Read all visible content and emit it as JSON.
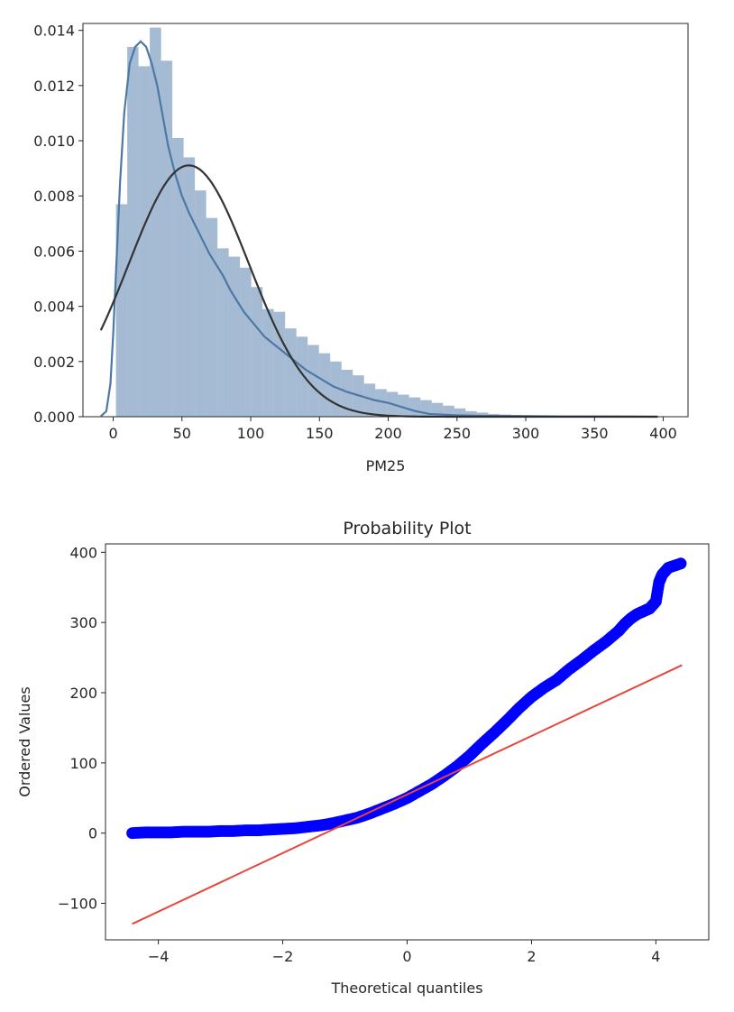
{
  "chart_data": [
    {
      "type": "bar",
      "subtype": "histogram-with-kde-and-normal-fit",
      "title": "",
      "xlabel": "PM25",
      "ylabel": "",
      "xlim": [
        -22,
        418
      ],
      "ylim": [
        0,
        0.01425
      ],
      "xticks": [
        0,
        50,
        100,
        150,
        200,
        250,
        300,
        350,
        400
      ],
      "yticks": [
        0.0,
        0.002,
        0.004,
        0.006,
        0.008,
        0.01,
        0.012,
        0.014
      ],
      "ytick_labels": [
        "0.000",
        "0.002",
        "0.004",
        "0.006",
        "0.008",
        "0.010",
        "0.012",
        "0.014"
      ],
      "grid": false,
      "legend": "none",
      "colors": {
        "bars": "#4c78a8",
        "kde": "#4c78a8",
        "normal_fit": "#333333"
      },
      "bins": {
        "start": 2,
        "width": 8.2,
        "density": [
          0.0077,
          0.0134,
          0.0127,
          0.0141,
          0.0129,
          0.0101,
          0.0094,
          0.0082,
          0.0072,
          0.0061,
          0.0058,
          0.0054,
          0.0047,
          0.0039,
          0.0038,
          0.0032,
          0.0029,
          0.0026,
          0.0023,
          0.002,
          0.0017,
          0.0015,
          0.0012,
          0.001,
          0.0009,
          0.0008,
          0.0007,
          0.0006,
          0.0005,
          0.0004,
          0.0003,
          0.0002,
          0.00015,
          0.0001,
          8e-05,
          6e-05,
          5e-05,
          4e-05,
          3e-05,
          2e-05,
          2e-05,
          1e-05,
          1e-05,
          1e-05,
          1e-05,
          1e-05
        ]
      },
      "series": [
        {
          "kind": "kde",
          "x": [
            -9,
            -5,
            -2,
            0,
            2,
            5,
            8,
            12,
            16,
            20,
            24,
            28,
            32,
            36,
            40,
            45,
            50,
            55,
            60,
            65,
            70,
            75,
            80,
            85,
            90,
            95,
            100,
            110,
            120,
            130,
            140,
            150,
            160,
            170,
            180,
            190,
            200,
            210,
            220,
            230,
            250,
            270,
            300,
            330,
            360,
            396
          ],
          "y": [
            2e-05,
            0.0002,
            0.0012,
            0.003,
            0.0052,
            0.0085,
            0.011,
            0.0128,
            0.0134,
            0.0136,
            0.0134,
            0.0128,
            0.012,
            0.0109,
            0.0098,
            0.0088,
            0.008,
            0.0074,
            0.0069,
            0.0064,
            0.0059,
            0.0055,
            0.0051,
            0.0046,
            0.0042,
            0.0038,
            0.0035,
            0.0029,
            0.0025,
            0.0021,
            0.0017,
            0.0014,
            0.0011,
            0.0009,
            0.00075,
            0.0006,
            0.0005,
            0.00035,
            0.0002,
            0.0001,
            5e-05,
            3e-05,
            2e-05,
            1e-05,
            1e-05,
            0.0
          ]
        },
        {
          "kind": "normal-fit",
          "mean": 55,
          "std": 43.8,
          "x_range": [
            -9,
            396
          ]
        }
      ]
    },
    {
      "type": "scatter",
      "subtype": "probability-plot",
      "title": "Probability Plot",
      "xlabel": "Theoretical quantiles",
      "ylabel": "Ordered Values",
      "xlim": [
        -4.85,
        4.85
      ],
      "ylim": [
        -152,
        412
      ],
      "xticks": [
        -4,
        -2,
        0,
        2,
        4
      ],
      "xtick_labels": [
        "−4",
        "−2",
        "0",
        "2",
        "4"
      ],
      "yticks": [
        -100,
        0,
        100,
        200,
        300,
        400
      ],
      "ytick_labels": [
        "−100",
        "0",
        "100",
        "200",
        "300",
        "400"
      ],
      "grid": false,
      "legend": "none",
      "colors": {
        "points": "#0000ff",
        "fit_line": "#e8453c"
      },
      "series": [
        {
          "kind": "ordered-values",
          "x": [
            -4.42,
            -4.2,
            -4.0,
            -3.8,
            -3.6,
            -3.4,
            -3.2,
            -3.0,
            -2.8,
            -2.6,
            -2.4,
            -2.2,
            -2.0,
            -1.8,
            -1.6,
            -1.4,
            -1.2,
            -1.0,
            -0.8,
            -0.6,
            -0.4,
            -0.2,
            0.0,
            0.2,
            0.4,
            0.6,
            0.8,
            1.0,
            1.2,
            1.4,
            1.6,
            1.8,
            2.0,
            2.2,
            2.4,
            2.6,
            2.8,
            3.0,
            3.2,
            3.4,
            3.5,
            3.6,
            3.7,
            3.8,
            3.85,
            3.9,
            4.0,
            4.05,
            4.1,
            4.2,
            4.4
          ],
          "y": [
            0,
            1,
            1,
            1,
            2,
            2,
            2,
            3,
            3,
            4,
            4,
            5,
            6,
            7,
            9,
            11,
            14,
            18,
            22,
            28,
            35,
            42,
            50,
            60,
            70,
            82,
            95,
            110,
            127,
            143,
            160,
            178,
            194,
            207,
            218,
            233,
            246,
            260,
            273,
            288,
            298,
            306,
            312,
            316,
            318,
            320,
            330,
            357,
            368,
            378,
            384
          ]
        },
        {
          "kind": "fit-line",
          "slope": 41.7,
          "intercept": 55.0,
          "x_range": [
            -4.42,
            4.42
          ]
        }
      ]
    }
  ]
}
